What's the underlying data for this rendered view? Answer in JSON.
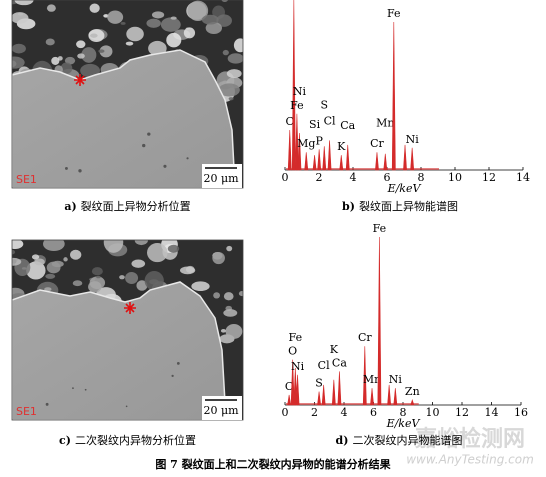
{
  "figure": {
    "caption": "图 7   裂纹面上和二次裂纹内异物的能谱分析结果"
  },
  "panels": [
    {
      "label": "a)",
      "caption": "裂纹面上异物分析位置",
      "image": {
        "detector": "SE1",
        "scale_bar": "20 μm"
      }
    },
    {
      "label": "b)",
      "caption": "裂纹面上异物能谱图",
      "chart_data": {
        "type": "spectrum",
        "xlabel": "E/keV",
        "xlim": [
          0,
          14
        ],
        "xticks": [
          0,
          2,
          4,
          6,
          8,
          10,
          12,
          14
        ],
        "color": "#d42b2b",
        "peaks": [
          {
            "element": "C",
            "energy": 0.28,
            "intensity": 27
          },
          {
            "element": null,
            "energy": 0.52,
            "intensity": 115
          },
          {
            "element": "Fe",
            "energy": 0.7,
            "intensity": 38
          },
          {
            "element": "Ni",
            "energy": 0.85,
            "intensity": 25
          },
          {
            "element": "Mg",
            "energy": 1.25,
            "intensity": 12
          },
          {
            "element": "Si",
            "energy": 1.74,
            "intensity": 10
          },
          {
            "element": "P",
            "energy": 2.01,
            "intensity": 14
          },
          {
            "element": "S",
            "energy": 2.31,
            "intensity": 16
          },
          {
            "element": "Cl",
            "energy": 2.62,
            "intensity": 20
          },
          {
            "element": "K",
            "energy": 3.31,
            "intensity": 10
          },
          {
            "element": "Ca",
            "energy": 3.69,
            "intensity": 17
          },
          {
            "element": "Cr",
            "energy": 5.41,
            "intensity": 12
          },
          {
            "element": "Mn",
            "energy": 5.9,
            "intensity": 11
          },
          {
            "element": "Fe",
            "energy": 6.4,
            "intensity": 100
          },
          {
            "element": null,
            "energy": 7.06,
            "intensity": 17
          },
          {
            "element": "Ni",
            "energy": 7.48,
            "intensity": 15
          }
        ]
      }
    },
    {
      "label": "c)",
      "caption": "二次裂纹内异物分析位置",
      "image": {
        "detector": "SE1",
        "scale_bar": "20 μm"
      }
    },
    {
      "label": "d)",
      "caption": "二次裂纹内异物能谱图",
      "chart_data": {
        "type": "spectrum",
        "xlabel": "E/keV",
        "xlim": [
          0,
          16
        ],
        "xticks": [
          0,
          2,
          4,
          6,
          8,
          10,
          12,
          14,
          16
        ],
        "color": "#d42b2b",
        "peaks": [
          {
            "element": "C",
            "energy": 0.28,
            "intensity": 6
          },
          {
            "element": "O",
            "energy": 0.52,
            "intensity": 27
          },
          {
            "element": "Fe",
            "energy": 0.7,
            "intensity": 22
          },
          {
            "element": "Ni",
            "energy": 0.85,
            "intensity": 18
          },
          {
            "element": "S",
            "energy": 2.31,
            "intensity": 8
          },
          {
            "element": "Cl",
            "energy": 2.62,
            "intensity": 12
          },
          {
            "element": "K",
            "energy": 3.31,
            "intensity": 15
          },
          {
            "element": "Ca",
            "energy": 3.69,
            "intensity": 20
          },
          {
            "element": "Cr",
            "energy": 5.41,
            "intensity": 35
          },
          {
            "element": "Mn",
            "energy": 5.9,
            "intensity": 10
          },
          {
            "element": "Fe",
            "energy": 6.4,
            "intensity": 100
          },
          {
            "element": null,
            "energy": 7.06,
            "intensity": 12
          },
          {
            "element": "Ni",
            "energy": 7.48,
            "intensity": 10
          },
          {
            "element": "Zn",
            "energy": 8.63,
            "intensity": 3
          }
        ]
      }
    }
  ],
  "watermark": {
    "text": "嘉峪检测网",
    "url": "www.AnyTesting.com"
  }
}
